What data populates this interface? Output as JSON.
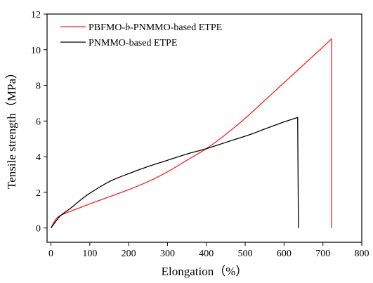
{
  "chart_data": {
    "type": "line",
    "title": "",
    "xlabel": "Elongation（%）",
    "ylabel": "Tensile strength（MPa）",
    "xlim": [
      -10,
      800
    ],
    "ylim": [
      -0.8,
      12
    ],
    "x_ticks": [
      0,
      100,
      200,
      300,
      400,
      500,
      600,
      700,
      800
    ],
    "y_ticks": [
      0,
      2,
      4,
      6,
      8,
      10,
      12
    ],
    "grid": false,
    "legend_position": "top-left",
    "series": [
      {
        "name_parts": [
          "PBFMO-",
          "b",
          "-PNMMO-based ETPE"
        ],
        "color": "#ff2020",
        "x": [
          0,
          10,
          20,
          40,
          70,
          100,
          150,
          200,
          250,
          300,
          350,
          400,
          450,
          500,
          550,
          600,
          650,
          700,
          722,
          722
        ],
        "y": [
          0.0,
          0.4,
          0.65,
          0.85,
          1.1,
          1.35,
          1.75,
          2.15,
          2.6,
          3.15,
          3.8,
          4.45,
          5.25,
          6.15,
          7.15,
          8.15,
          9.15,
          10.15,
          10.6,
          0.0
        ]
      },
      {
        "name": "PNMMO-based ETPE",
        "color": "#000000",
        "x": [
          0,
          10,
          25,
          50,
          75,
          100,
          150,
          200,
          250,
          300,
          350,
          400,
          450,
          500,
          520,
          550,
          600,
          635,
          637
        ],
        "y": [
          0.0,
          0.3,
          0.7,
          1.1,
          1.55,
          1.95,
          2.6,
          3.05,
          3.45,
          3.8,
          4.15,
          4.45,
          4.8,
          5.15,
          5.3,
          5.55,
          5.95,
          6.2,
          0.0
        ]
      }
    ]
  }
}
